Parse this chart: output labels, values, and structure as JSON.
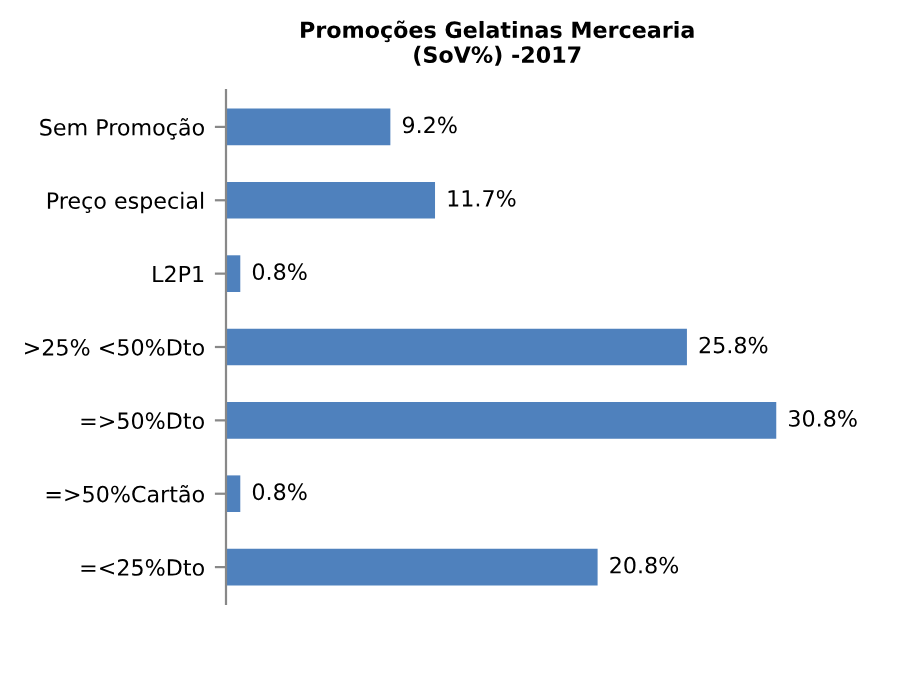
{
  "chart_data": {
    "type": "bar",
    "orientation": "horizontal",
    "title": "Promoções Gelatinas Mercearia\n(SoV%) -2017",
    "categories": [
      "Sem Promoção",
      "Preço especial",
      "L2P1",
      ">25% <50%Dto",
      "=>50%Dto",
      "=>50%Cartão",
      "=<25%Dto"
    ],
    "values": [
      9.2,
      11.7,
      0.8,
      25.8,
      30.8,
      0.8,
      20.8
    ],
    "value_labels": [
      "9.2%",
      "11.7%",
      "0.8%",
      "25.8%",
      "30.8%",
      "0.8%",
      "20.8%"
    ],
    "color": "#4f81bd",
    "grid": false,
    "legend": false
  }
}
